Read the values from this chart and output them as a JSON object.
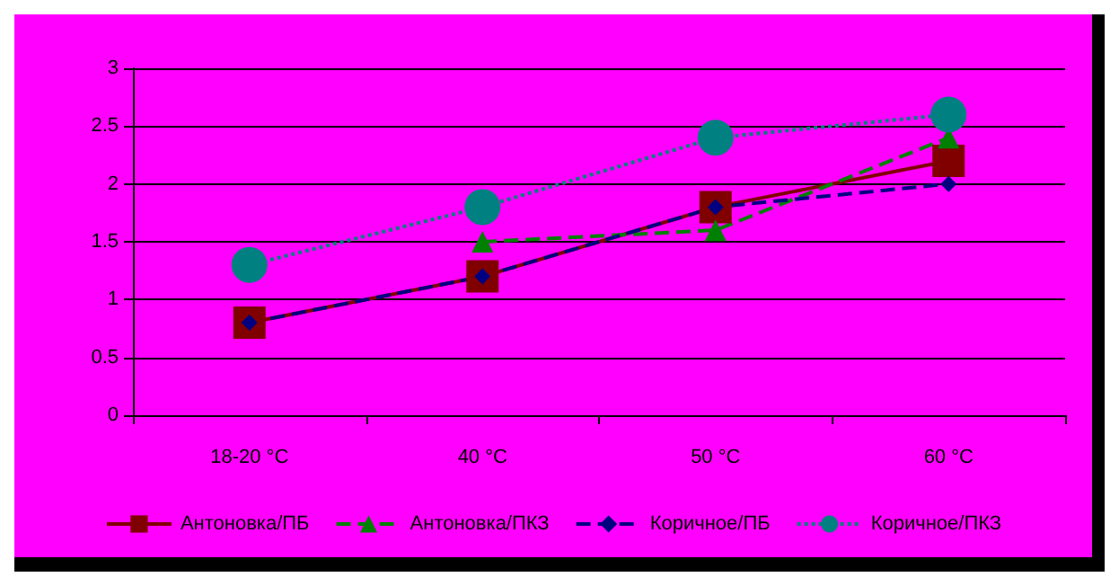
{
  "chart_data": {
    "type": "line",
    "categories": [
      "18-20 °C",
      "40 °C",
      "50 °C",
      "60 °C"
    ],
    "series": [
      {
        "name": "Антоновка/ПБ",
        "color": "#800000",
        "values": [
          0.8,
          1.2,
          1.8,
          2.2
        ],
        "marker": "square",
        "line_style": "solid"
      },
      {
        "name": "Антоновка/ПКЗ",
        "color": "#008000",
        "values": [
          null,
          1.5,
          1.6,
          2.4
        ],
        "marker": "triangle",
        "line_style": "dashed"
      },
      {
        "name": "Коричное/ПБ",
        "color": "#000080",
        "values": [
          0.8,
          1.2,
          1.8,
          2.0
        ],
        "marker": "diamond",
        "line_style": "dashed"
      },
      {
        "name": "Коричное/ПКЗ",
        "color": "#008080",
        "values": [
          1.3,
          1.8,
          2.4,
          2.6
        ],
        "marker": "circle",
        "line_style": "dotted"
      }
    ],
    "ylim": [
      0,
      3
    ],
    "yticks": [
      0,
      0.5,
      1,
      1.5,
      2,
      2.5,
      3
    ],
    "grid": "y",
    "legend": "bottom"
  }
}
